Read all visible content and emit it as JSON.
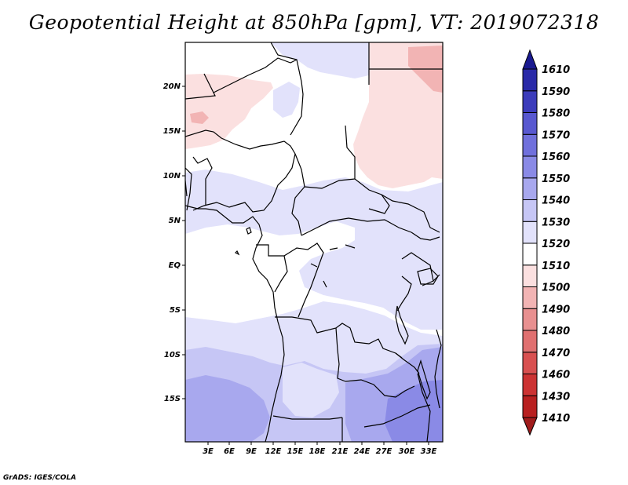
{
  "title": "Geopotential Height at 850hPa [gpm], VT: 2019072318",
  "credit": "GrADS: IGES/COLA",
  "map": {
    "lat_labels": [
      "20N",
      "15N",
      "10N",
      "5N",
      "EQ",
      "5S",
      "10S",
      "15S"
    ],
    "lon_labels": [
      "3E",
      "6E",
      "9E",
      "12E",
      "15E",
      "18E",
      "21E",
      "24E",
      "27E",
      "30E",
      "33E"
    ]
  },
  "colorbar": {
    "levels": [
      "1410",
      "1430",
      "1460",
      "1470",
      "1480",
      "1490",
      "1500",
      "1510",
      "1520",
      "1530",
      "1540",
      "1550",
      "1560",
      "1570",
      "1580",
      "1590",
      "1610"
    ],
    "colors": [
      "#a01c1c",
      "#b82020",
      "#cc3333",
      "#d85050",
      "#e07070",
      "#e89090",
      "#f2b4b4",
      "#fbe0e0",
      "#ffffff",
      "#e2e2fb",
      "#c6c6f5",
      "#a8a8ee",
      "#8a8ae6",
      "#7070dc",
      "#5858d0",
      "#3c3cbb",
      "#2a2aa8",
      "#1a1a90"
    ]
  }
}
